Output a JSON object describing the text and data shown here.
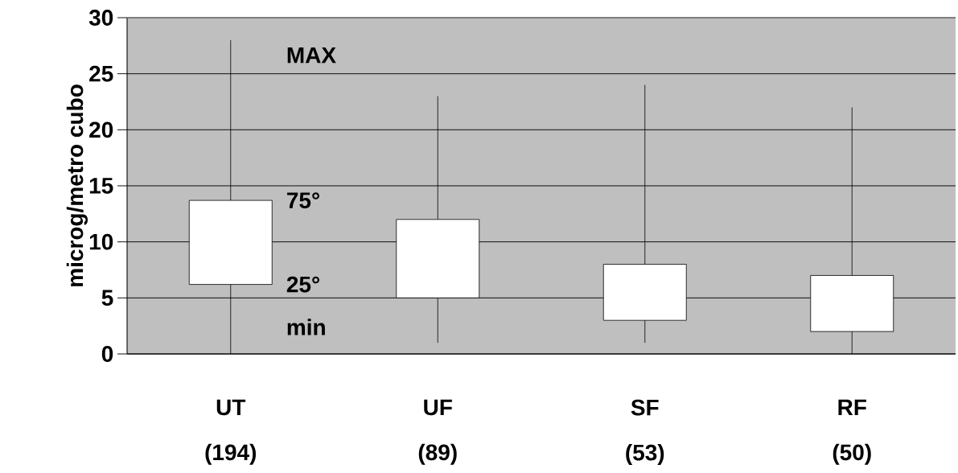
{
  "chart_data": {
    "type": "box",
    "categories": [
      "UT (194)",
      "UF (89)",
      "SF (53)",
      "RF (50)"
    ],
    "series": [
      {
        "color": "#ffffff",
        "boxes": [
          {
            "low": 0,
            "q1": 6.2,
            "q3": 13.7,
            "high": 28
          },
          {
            "low": 1,
            "q1": 5,
            "q3": 12,
            "high": 23
          },
          {
            "low": 1,
            "q1": 3,
            "q3": 8,
            "high": 24
          },
          {
            "low": 0,
            "q1": 2,
            "q3": 7,
            "high": 22
          }
        ]
      }
    ],
    "ylabel": "microg/metro cubo",
    "ylim": [
      0,
      30
    ],
    "yticks": [
      0,
      5,
      10,
      15,
      20,
      25,
      30
    ],
    "grid": "y",
    "annotations": [
      {
        "text": "MAX",
        "x": "UT (194)",
        "y": 28
      },
      {
        "text": "75°",
        "x": "UT (194)",
        "y": 13.7
      },
      {
        "text": "25°",
        "x": "UT (194)",
        "y": 6.2
      },
      {
        "text": "min",
        "x": "UT (194)",
        "y": 0
      }
    ]
  }
}
